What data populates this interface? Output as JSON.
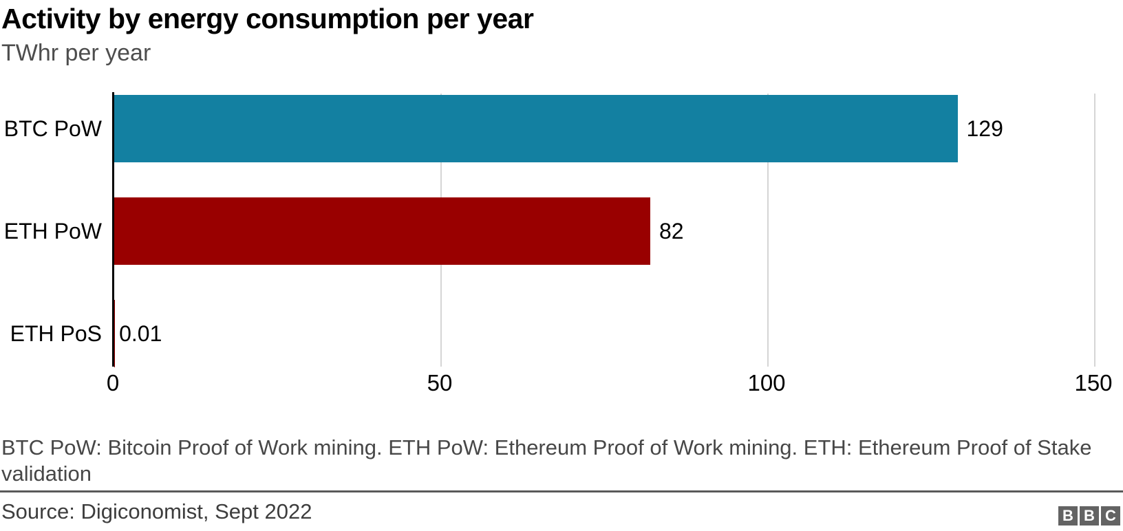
{
  "header": {
    "title": "Activity by energy consumption per year",
    "subtitle": "TWhr per year"
  },
  "chart_data": {
    "type": "bar",
    "orientation": "horizontal",
    "title": "Activity by energy consumption per year",
    "subtitle": "TWhr per year",
    "xlabel": "",
    "ylabel": "",
    "categories": [
      "BTC PoW",
      "ETH PoW",
      "ETH PoS"
    ],
    "values": [
      129,
      82,
      0.01
    ],
    "value_labels": [
      "129",
      "82",
      "0.01"
    ],
    "bar_colors": [
      "#1380a1",
      "#990000",
      "#990000"
    ],
    "xlim": [
      0,
      154
    ],
    "x_ticks": [
      0,
      50,
      100,
      150
    ],
    "x_tick_labels": [
      "0",
      "50",
      "100",
      "150"
    ],
    "gridlines": [
      50,
      100,
      150
    ],
    "grid": true,
    "legend": "none"
  },
  "colors": {
    "bar_teal": "#1380a1",
    "bar_red": "#990000",
    "axis": "#000000",
    "gridline": "#d5d5d5",
    "subtitle_text": "#4d4d4d",
    "footnote_text": "#474747",
    "source_text": "#3d3d3d",
    "divider": "#595959",
    "logo_gray": "#636363"
  },
  "footer": {
    "footnote_lines": [
      "BTC PoW: Bitcoin Proof of Work mining. ETH PoW: Ethereum Proof of Work mining. ETH: Ethereum Proof of Stake",
      "validation"
    ],
    "source": "Source: Digiconomist, Sept 2022",
    "logo_letters": [
      "B",
      "B",
      "C"
    ]
  }
}
